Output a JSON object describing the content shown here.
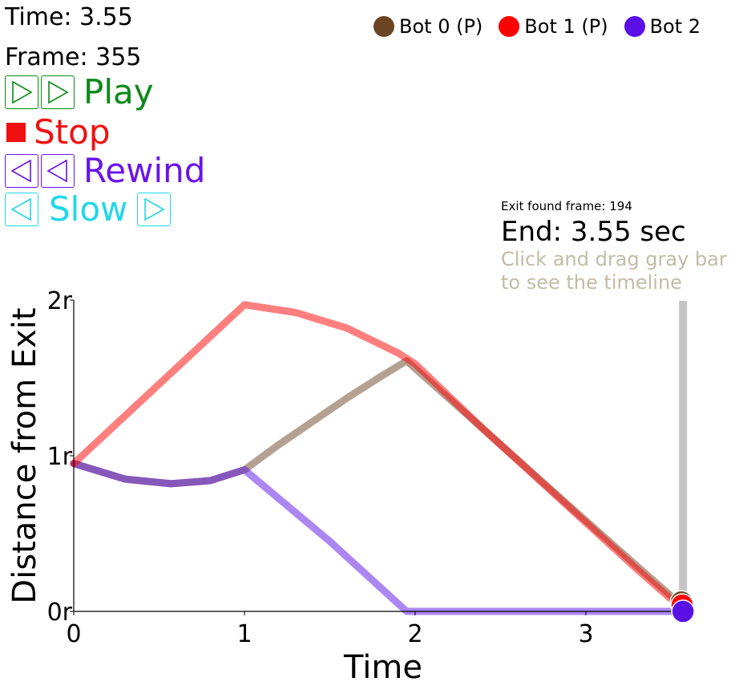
{
  "readouts": {
    "time": "Time: 3.55",
    "frame": "Frame: 355"
  },
  "controls": {
    "play": "Play",
    "stop": "Stop",
    "rewind": "Rewind",
    "slow": "Slow"
  },
  "legend": [
    {
      "label": "Bot 0 (P)",
      "color": "#6b4423"
    },
    {
      "label": "Bot 1 (P)",
      "color": "#ff0000"
    },
    {
      "label": "Bot 2",
      "color": "#5a0fe6"
    }
  ],
  "info": {
    "exit_found": "Exit found frame: 194",
    "end": "End: 3.55 sec",
    "hint_line1": "Click and drag gray bar",
    "hint_line2": "to see the timeline"
  },
  "chart_data": {
    "type": "line",
    "xlabel": "Time",
    "ylabel": "Distance from Exit",
    "xlim": [
      0,
      3.55
    ],
    "ylim": [
      0,
      2
    ],
    "xticks": [
      "0",
      "1",
      "2",
      "3"
    ],
    "xtick_values": [
      0,
      1,
      2,
      3
    ],
    "yticks": [
      "0r",
      "1r",
      "2r"
    ],
    "ytick_values": [
      0,
      1,
      2
    ],
    "timeline_position": 3.55,
    "series": [
      {
        "name": "Bot 0 (P)",
        "color": "#6b4423",
        "points": [
          [
            0,
            0.95
          ],
          [
            0.3,
            0.85
          ],
          [
            0.57,
            0.82
          ],
          [
            0.8,
            0.84
          ],
          [
            1.0,
            0.91
          ],
          [
            1.2,
            1.07
          ],
          [
            1.4,
            1.22
          ],
          [
            1.6,
            1.37
          ],
          [
            1.8,
            1.51
          ],
          [
            1.95,
            1.61
          ],
          [
            2.4,
            1.17
          ],
          [
            2.9,
            0.68
          ],
          [
            3.3,
            0.29
          ],
          [
            3.55,
            0.05
          ]
        ]
      },
      {
        "name": "Bot 1 (P)",
        "color": "#ff0000",
        "points": [
          [
            0,
            0.95
          ],
          [
            1.0,
            1.97
          ],
          [
            1.3,
            1.92
          ],
          [
            1.6,
            1.82
          ],
          [
            1.9,
            1.66
          ],
          [
            2.0,
            1.59
          ],
          [
            2.4,
            1.17
          ],
          [
            2.9,
            0.67
          ],
          [
            3.3,
            0.27
          ],
          [
            3.55,
            0.03
          ]
        ]
      },
      {
        "name": "Bot 2",
        "color": "#5a0fe6",
        "points": [
          [
            0,
            0.95
          ],
          [
            0.3,
            0.85
          ],
          [
            0.57,
            0.82
          ],
          [
            0.8,
            0.84
          ],
          [
            1.0,
            0.91
          ],
          [
            1.5,
            0.45
          ],
          [
            1.95,
            0.0
          ],
          [
            3.55,
            0.0
          ]
        ]
      }
    ]
  }
}
